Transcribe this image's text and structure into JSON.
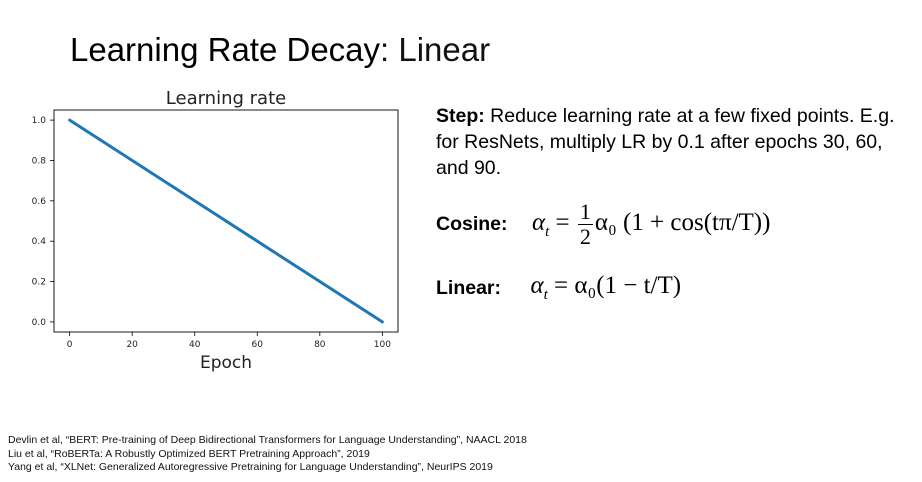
{
  "slide": {
    "title_main": "Learning Rate Decay",
    "title_sep": ": ",
    "title_sub": "Linear"
  },
  "chart_data": {
    "type": "line",
    "title": "Learning rate",
    "xlabel": "Epoch",
    "ylabel": "",
    "xlim": [
      -5,
      105
    ],
    "ylim": [
      -0.05,
      1.05
    ],
    "xticks": [
      0,
      20,
      40,
      60,
      80,
      100
    ],
    "yticks": [
      0.0,
      0.2,
      0.4,
      0.6,
      0.8,
      1.0
    ],
    "xtick_labels": [
      "0",
      "20",
      "40",
      "60",
      "80",
      "100"
    ],
    "ytick_labels": [
      "0.0",
      "0.2",
      "0.4",
      "0.6",
      "0.8",
      "1.0"
    ],
    "grid": false,
    "series": [
      {
        "x": [
          0,
          100
        ],
        "values": [
          1.0,
          0.0
        ],
        "color": "#1f77b4"
      }
    ]
  },
  "text": {
    "step_label": "Step:",
    "step_body": " Reduce learning rate at a few fixed points. E.g. for ResNets, multiply LR by 0.1 after epochs 30, 60, and 90.",
    "cosine_label": "Cosine:",
    "cosine_lhs": "α",
    "cosine_sub": "t",
    "cosine_eq": " = ",
    "cosine_num": "1",
    "cosine_den": "2",
    "cosine_rhs": "α₀ (1 + cos(tπ/T))",
    "linear_label": "Linear:",
    "linear_lhs": "α",
    "linear_sub": "t",
    "linear_eq": " = ",
    "linear_rhs": "α₀(1 − t/T)"
  },
  "references": [
    "Devlin et al, “BERT: Pre-training of Deep Bidirectional Transformers for Language Understanding”, NAACL 2018",
    "Liu et al, “RoBERTa: A Robustly Optimized BERT Pretraining Approach”, 2019",
    "Yang et al, “XLNet: Generalized Autoregressive Pretraining for Language Understanding”, NeurIPS 2019"
  ]
}
